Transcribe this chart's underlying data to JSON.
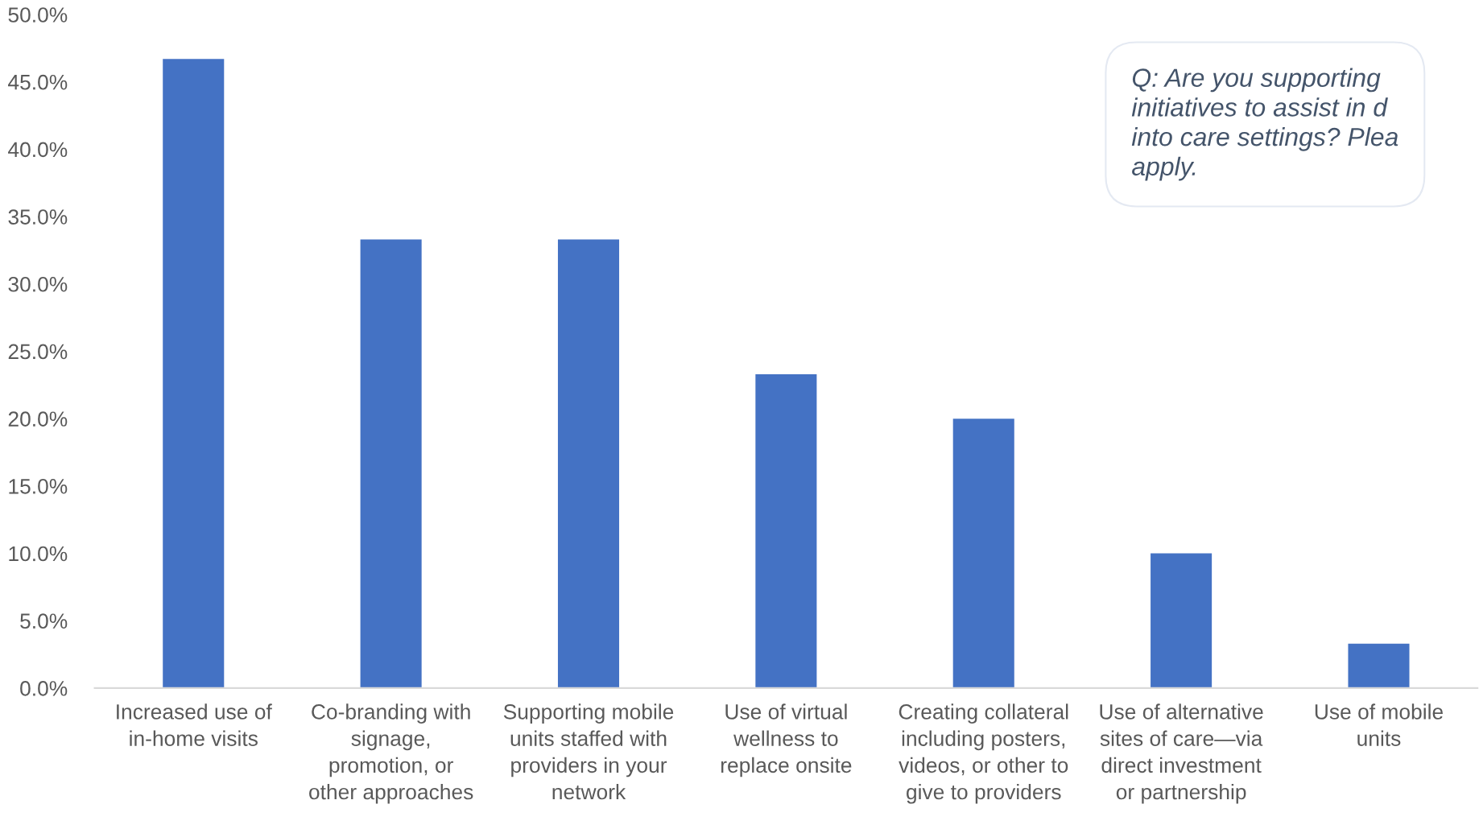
{
  "chart_data": {
    "type": "bar",
    "categories": [
      "Increased use of\nin-home visits",
      "Co-branding with\nsignage,\npromotion, or\nother approaches",
      "Supporting mobile\nunits staffed with\nproviders in your\nnetwork",
      "Use of virtual\nwellness to\nreplace onsite",
      "Creating collateral\nincluding posters,\nvideos, or other to\ngive to providers",
      "Use of alternative\nsites of care—via\ndirect investment\nor partnership",
      "Use of mobile\nunits"
    ],
    "values": [
      46.7,
      33.3,
      33.3,
      23.3,
      20.0,
      10.0,
      3.3
    ],
    "color": "#4472c4",
    "ylim": [
      0,
      50
    ],
    "yticks": [
      {
        "value": 0,
        "label": "0.0%"
      },
      {
        "value": 5,
        "label": "5.0%"
      },
      {
        "value": 10,
        "label": "10.0%"
      },
      {
        "value": 15,
        "label": "15.0%"
      },
      {
        "value": 20,
        "label": "20.0%"
      },
      {
        "value": 25,
        "label": "25.0%"
      },
      {
        "value": 30,
        "label": "30.0%"
      },
      {
        "value": 35,
        "label": "35.0%"
      },
      {
        "value": 40,
        "label": "40.0%"
      },
      {
        "value": 45,
        "label": "45.0%"
      },
      {
        "value": 50,
        "label": "50.0%"
      }
    ],
    "grid": false,
    "annotations": [
      "Q: Are you supporting\ninitiatives to assist in d\ninto care settings? Plea\napply."
    ]
  }
}
